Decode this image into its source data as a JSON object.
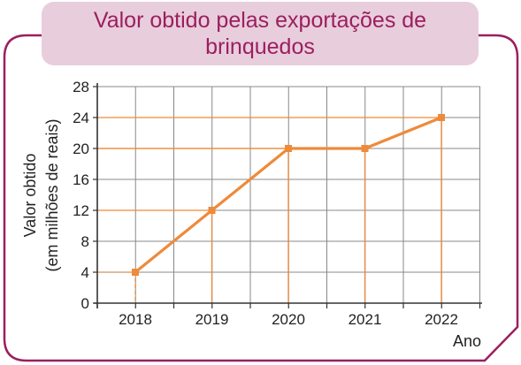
{
  "title": "Valor obtido pelas exportações de brinquedos",
  "colors": {
    "title_bg": "#e8cddd",
    "title_text": "#9b1f5e",
    "frame": "#9b1f5e",
    "series": "#ee8a3a",
    "grid": "#888888"
  },
  "chart_data": {
    "type": "line",
    "title": "Valor obtido pelas exportações de brinquedos",
    "xlabel": "Ano",
    "ylabel": "Valor obtido",
    "ylabel_sub": "(em milhões de reais)",
    "x": [
      "2018",
      "2019",
      "2020",
      "2021",
      "2022"
    ],
    "series": [
      {
        "values": [
          4,
          12,
          20,
          20,
          24
        ]
      }
    ],
    "yticks": [
      "0",
      "4",
      "8",
      "12",
      "16",
      "20",
      "24",
      "28"
    ],
    "ylim": [
      0,
      28
    ],
    "grid": true,
    "guide_lines": "dashed orange projections from each point to both axes"
  }
}
